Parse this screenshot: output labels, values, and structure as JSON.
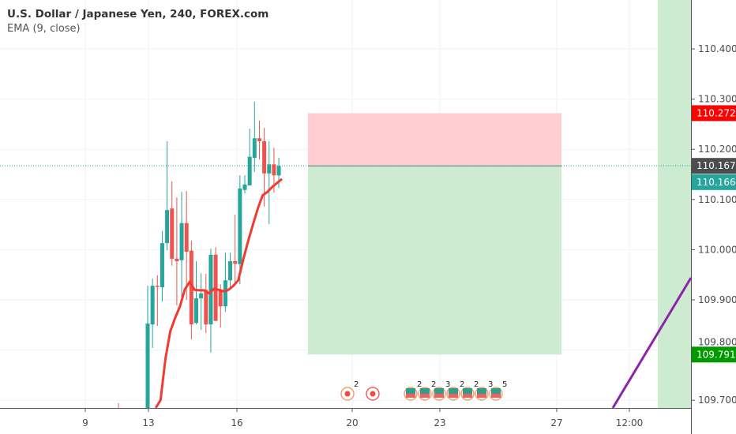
{
  "legend": {
    "title": "U.S. Dollar / Japanese Yen, 240, FOREX.com",
    "indicator": "EMA (9, close)"
  },
  "colors": {
    "up": "#26a69a",
    "down": "#ef5350",
    "ema": "#f23a30",
    "stop_zone": "#ffcdd2",
    "target_zone": "#cdebd0",
    "purple_line": "#8e24aa",
    "session_shade": "#cdebd0"
  },
  "price_axis": {
    "ticks": [
      "110.400",
      "110.300",
      "110.200",
      "110.100",
      "110.000",
      "109.900",
      "109.800",
      "109.700"
    ]
  },
  "price_labels": [
    {
      "value": "110.272",
      "color": "#ff0000"
    },
    {
      "value": "110.167",
      "color": "#4d4d4d"
    },
    {
      "value": "110.166",
      "color": "#26a69a"
    },
    {
      "value": "109.791",
      "color": "#009900"
    }
  ],
  "time_axis": {
    "ticks": [
      "9",
      "13",
      "16",
      "20",
      "23",
      "27",
      "12:00"
    ]
  },
  "position": {
    "stop": 110.272,
    "entry": 110.167,
    "target": 109.791
  },
  "events": [
    {
      "label": "2"
    },
    {
      "label": ""
    },
    {
      "label": "2"
    },
    {
      "label": "2"
    },
    {
      "label": "3"
    },
    {
      "label": "2"
    },
    {
      "label": "2"
    },
    {
      "label": "3"
    },
    {
      "label": "5"
    }
  ],
  "chart_data": {
    "type": "candlestick",
    "ylim": [
      109.68,
      110.48
    ],
    "candles": [
      [
        109.67,
        109.928,
        109.66,
        109.853
      ],
      [
        109.851,
        109.942,
        109.804,
        109.928
      ],
      [
        109.928,
        109.949,
        109.848,
        109.926
      ],
      [
        109.925,
        110.037,
        109.897,
        110.013
      ],
      [
        110.013,
        110.216,
        109.999,
        110.079
      ],
      [
        110.082,
        110.136,
        109.968,
        109.982
      ],
      [
        109.982,
        110.104,
        109.889,
        109.977
      ],
      [
        109.979,
        110.115,
        109.905,
        110.053
      ],
      [
        110.053,
        110.117,
        109.9,
        109.996
      ],
      [
        109.998,
        110.018,
        109.821,
        109.851
      ],
      [
        109.854,
        109.977,
        109.851,
        109.903
      ],
      [
        109.903,
        109.953,
        109.84,
        109.913
      ],
      [
        109.92,
        109.952,
        109.834,
        109.851
      ],
      [
        109.851,
        110.002,
        109.795,
        109.99
      ],
      [
        109.99,
        110.005,
        109.858,
        109.858
      ],
      [
        109.92,
        109.931,
        109.845,
        109.887
      ],
      [
        109.887,
        109.994,
        109.876,
        109.939
      ],
      [
        109.939,
        109.994,
        109.92,
        109.977
      ],
      [
        109.977,
        110.07,
        109.935,
        109.972
      ],
      [
        109.971,
        110.148,
        109.931,
        110.122
      ],
      [
        110.119,
        110.148,
        110.112,
        110.13
      ],
      [
        110.128,
        110.241,
        110.128,
        110.185
      ],
      [
        110.183,
        110.295,
        110.155,
        110.222
      ],
      [
        110.222,
        110.257,
        110.18,
        110.216
      ],
      [
        110.216,
        110.243,
        110.086,
        110.152
      ],
      [
        110.152,
        110.216,
        110.051,
        110.17
      ],
      [
        110.17,
        110.203,
        110.114,
        110.148
      ],
      [
        110.148,
        110.183,
        110.123,
        110.167
      ]
    ],
    "ema": [
      null,
      109.66,
      109.7,
      109.782,
      109.837,
      109.864,
      109.887,
      109.921,
      109.936,
      109.92,
      109.919,
      109.919,
      109.913,
      109.922,
      109.92,
      109.917,
      109.92,
      109.928,
      109.939,
      109.979,
      110.016,
      110.049,
      110.081,
      110.108,
      110.115,
      110.125,
      110.133,
      110.141
    ],
    "last_price": 110.167
  }
}
